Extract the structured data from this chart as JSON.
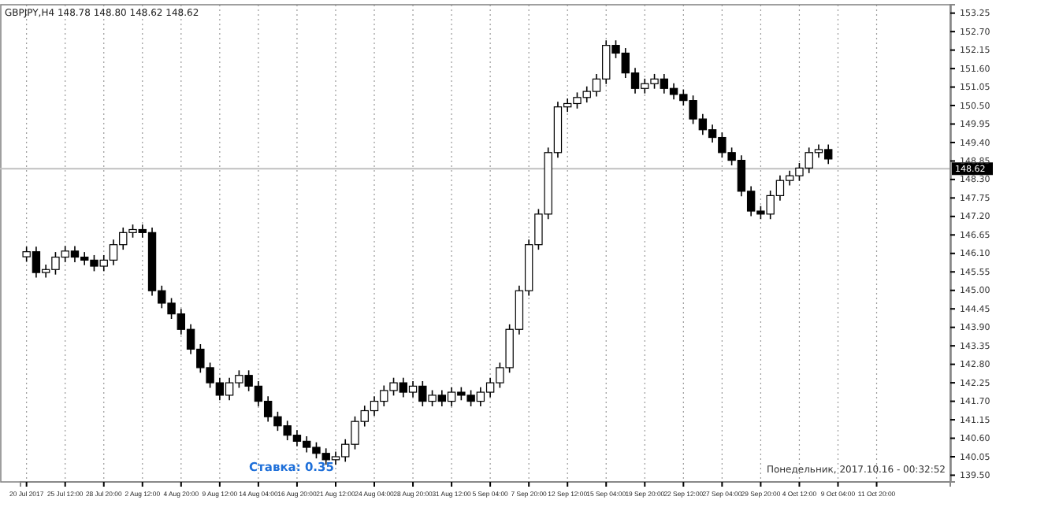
{
  "chart_data": {
    "type": "candlestick",
    "title": "GBPJPY,H4  148.78 148.80 148.62 148.62",
    "categories": [
      "20 Jul 2017",
      null,
      null,
      null,
      "25 Jul 12:00",
      null,
      null,
      null,
      "28 Jul 20:00",
      null,
      null,
      null,
      "2 Aug 12:00",
      null,
      null,
      null,
      "4 Aug 20:00",
      null,
      null,
      null,
      "9 Aug 12:00",
      null,
      null,
      null,
      "14 Aug 04:00",
      null,
      null,
      null,
      "16 Aug 20:00",
      null,
      null,
      null,
      "21 Aug 12:00",
      null,
      null,
      null,
      "24 Aug 04:00",
      null,
      null,
      null,
      "28 Aug 20:00",
      null,
      null,
      null,
      "31 Aug 12:00",
      null,
      null,
      null,
      "5 Sep 04:00",
      null,
      null,
      null,
      "7 Sep 20:00",
      null,
      null,
      null,
      "12 Sep 12:00",
      null,
      null,
      null,
      "15 Sep 04:00",
      null,
      null,
      null,
      "19 Sep 20:00",
      null,
      null,
      null,
      "22 Sep 12:00",
      null,
      null,
      null,
      "27 Sep 04:00",
      null,
      null,
      null,
      "29 Sep 20:00",
      null,
      null,
      null,
      "4 Oct 12:00",
      null,
      null,
      null,
      "9 Oct 04:00",
      null,
      null,
      null,
      "11 Oct 20:00",
      null,
      null,
      null,
      null,
      null,
      null,
      null
    ],
    "ohlc": [
      [
        146.0,
        146.3,
        145.85,
        146.15
      ],
      [
        146.15,
        146.3,
        145.38,
        145.53
      ],
      [
        145.53,
        145.77,
        145.38,
        145.62
      ],
      [
        145.62,
        146.14,
        145.47,
        145.99
      ],
      [
        145.99,
        146.32,
        145.84,
        146.17
      ],
      [
        146.17,
        146.32,
        145.84,
        145.99
      ],
      [
        145.99,
        146.14,
        145.75,
        145.9
      ],
      [
        145.9,
        146.05,
        145.57,
        145.72
      ],
      [
        145.72,
        146.05,
        145.57,
        145.9
      ],
      [
        145.9,
        146.51,
        145.75,
        146.36
      ],
      [
        146.36,
        146.87,
        146.21,
        146.72
      ],
      [
        146.72,
        146.96,
        146.57,
        146.81
      ],
      [
        146.81,
        146.96,
        146.57,
        146.72
      ],
      [
        146.72,
        146.87,
        144.84,
        144.99
      ],
      [
        144.99,
        145.14,
        144.47,
        144.62
      ],
      [
        144.62,
        144.77,
        144.15,
        144.3
      ],
      [
        144.3,
        144.45,
        143.69,
        143.84
      ],
      [
        143.84,
        143.99,
        143.1,
        143.25
      ],
      [
        143.25,
        143.4,
        142.55,
        142.7
      ],
      [
        142.7,
        142.85,
        142.1,
        142.25
      ],
      [
        142.25,
        142.4,
        141.73,
        141.88
      ],
      [
        141.88,
        142.4,
        141.73,
        142.25
      ],
      [
        142.25,
        142.62,
        142.1,
        142.47
      ],
      [
        142.47,
        142.62,
        142.0,
        142.15
      ],
      [
        142.15,
        142.3,
        141.55,
        141.7
      ],
      [
        141.7,
        141.85,
        141.09,
        141.24
      ],
      [
        141.24,
        141.39,
        140.82,
        140.97
      ],
      [
        140.97,
        141.12,
        140.54,
        140.69
      ],
      [
        140.69,
        140.84,
        140.36,
        140.51
      ],
      [
        140.51,
        140.66,
        140.18,
        140.33
      ],
      [
        140.33,
        140.48,
        140.0,
        140.15
      ],
      [
        140.15,
        140.3,
        139.81,
        139.96
      ],
      [
        139.96,
        140.2,
        139.81,
        140.05
      ],
      [
        140.05,
        140.57,
        139.9,
        140.42
      ],
      [
        140.42,
        141.25,
        140.27,
        141.1
      ],
      [
        141.1,
        141.57,
        140.95,
        141.42
      ],
      [
        141.42,
        141.85,
        141.27,
        141.7
      ],
      [
        141.7,
        142.17,
        141.55,
        142.02
      ],
      [
        142.02,
        142.4,
        141.87,
        142.25
      ],
      [
        142.25,
        142.4,
        141.82,
        141.97
      ],
      [
        141.97,
        142.3,
        141.82,
        142.15
      ],
      [
        142.15,
        142.3,
        141.55,
        141.7
      ],
      [
        141.7,
        142.03,
        141.55,
        141.88
      ],
      [
        141.88,
        142.03,
        141.55,
        141.7
      ],
      [
        141.7,
        142.12,
        141.55,
        141.97
      ],
      [
        141.97,
        142.12,
        141.73,
        141.88
      ],
      [
        141.88,
        142.03,
        141.55,
        141.7
      ],
      [
        141.7,
        142.12,
        141.55,
        141.97
      ],
      [
        141.97,
        142.4,
        141.82,
        142.25
      ],
      [
        142.25,
        142.85,
        142.1,
        142.7
      ],
      [
        142.7,
        143.99,
        142.55,
        143.84
      ],
      [
        143.84,
        145.14,
        143.69,
        144.99
      ],
      [
        144.99,
        146.51,
        144.84,
        146.36
      ],
      [
        146.36,
        147.42,
        146.21,
        147.27
      ],
      [
        147.27,
        149.25,
        147.12,
        149.1
      ],
      [
        149.1,
        150.61,
        148.95,
        150.46
      ],
      [
        150.46,
        150.71,
        150.31,
        150.56
      ],
      [
        150.56,
        150.89,
        150.41,
        150.74
      ],
      [
        150.74,
        151.07,
        150.59,
        150.92
      ],
      [
        150.92,
        151.44,
        150.77,
        151.29
      ],
      [
        151.29,
        152.44,
        151.14,
        152.29
      ],
      [
        152.29,
        152.44,
        151.91,
        152.06
      ],
      [
        152.06,
        152.21,
        151.32,
        151.47
      ],
      [
        151.47,
        151.62,
        150.86,
        151.01
      ],
      [
        151.01,
        151.3,
        150.86,
        151.15
      ],
      [
        151.15,
        151.44,
        151.0,
        151.29
      ],
      [
        151.29,
        151.44,
        150.86,
        151.01
      ],
      [
        151.01,
        151.16,
        150.68,
        150.83
      ],
      [
        150.83,
        150.98,
        150.5,
        150.65
      ],
      [
        150.65,
        150.8,
        149.95,
        150.1
      ],
      [
        150.1,
        150.25,
        149.63,
        149.78
      ],
      [
        149.78,
        149.93,
        149.4,
        149.55
      ],
      [
        149.55,
        149.7,
        148.95,
        149.1
      ],
      [
        149.1,
        149.25,
        148.72,
        148.87
      ],
      [
        148.87,
        149.02,
        147.8,
        147.95
      ],
      [
        147.95,
        148.1,
        147.21,
        147.36
      ],
      [
        147.36,
        147.51,
        147.12,
        147.27
      ],
      [
        147.27,
        147.97,
        147.12,
        147.82
      ],
      [
        147.82,
        148.42,
        147.67,
        148.27
      ],
      [
        148.27,
        148.56,
        148.12,
        148.41
      ],
      [
        148.41,
        148.79,
        148.26,
        148.64
      ],
      [
        148.64,
        149.25,
        148.49,
        149.1
      ],
      [
        149.1,
        149.34,
        148.95,
        149.19
      ],
      [
        149.19,
        149.34,
        148.76,
        148.91
      ],
      null,
      null,
      null,
      null,
      null,
      null,
      null,
      null,
      null,
      null,
      null,
      null
    ],
    "ylim": [
      139.3,
      153.5
    ],
    "yticks": [
      {
        "value": 139.5,
        "label": "139.50"
      },
      140.05,
      {
        "value": 140.6,
        "label": "140.60"
      },
      141.15,
      {
        "value": 141.7,
        "label": "141.70"
      },
      142.25,
      {
        "value": 142.8,
        "label": "142.80"
      },
      143.35,
      {
        "value": 143.9,
        "label": "143.90"
      },
      144.45,
      {
        "value": 145,
        "label": "145.00"
      },
      145.55,
      {
        "value": 146.1,
        "label": "146.10"
      },
      146.65,
      {
        "value": 147.2,
        "label": "147.20"
      },
      147.75,
      {
        "value": 148.3,
        "label": "148.30"
      },
      148.85,
      {
        "value": 149.4,
        "label": "149.40"
      },
      149.95,
      {
        "value": 150.5,
        "label": "150.50"
      },
      151.05,
      {
        "value": 151.6,
        "label": "151.60"
      },
      152.15,
      {
        "value": 152.7,
        "label": "152.70"
      },
      153.25
    ],
    "ref_lines": [
      {
        "axis": "y",
        "value": 148.62,
        "label": "148.62",
        "color": "#c0c0c0"
      }
    ],
    "annotations": [
      "Ставка: 0.35",
      "Понедельник, 2017.10.16 - 00:32:52"
    ],
    "grid": "x"
  }
}
